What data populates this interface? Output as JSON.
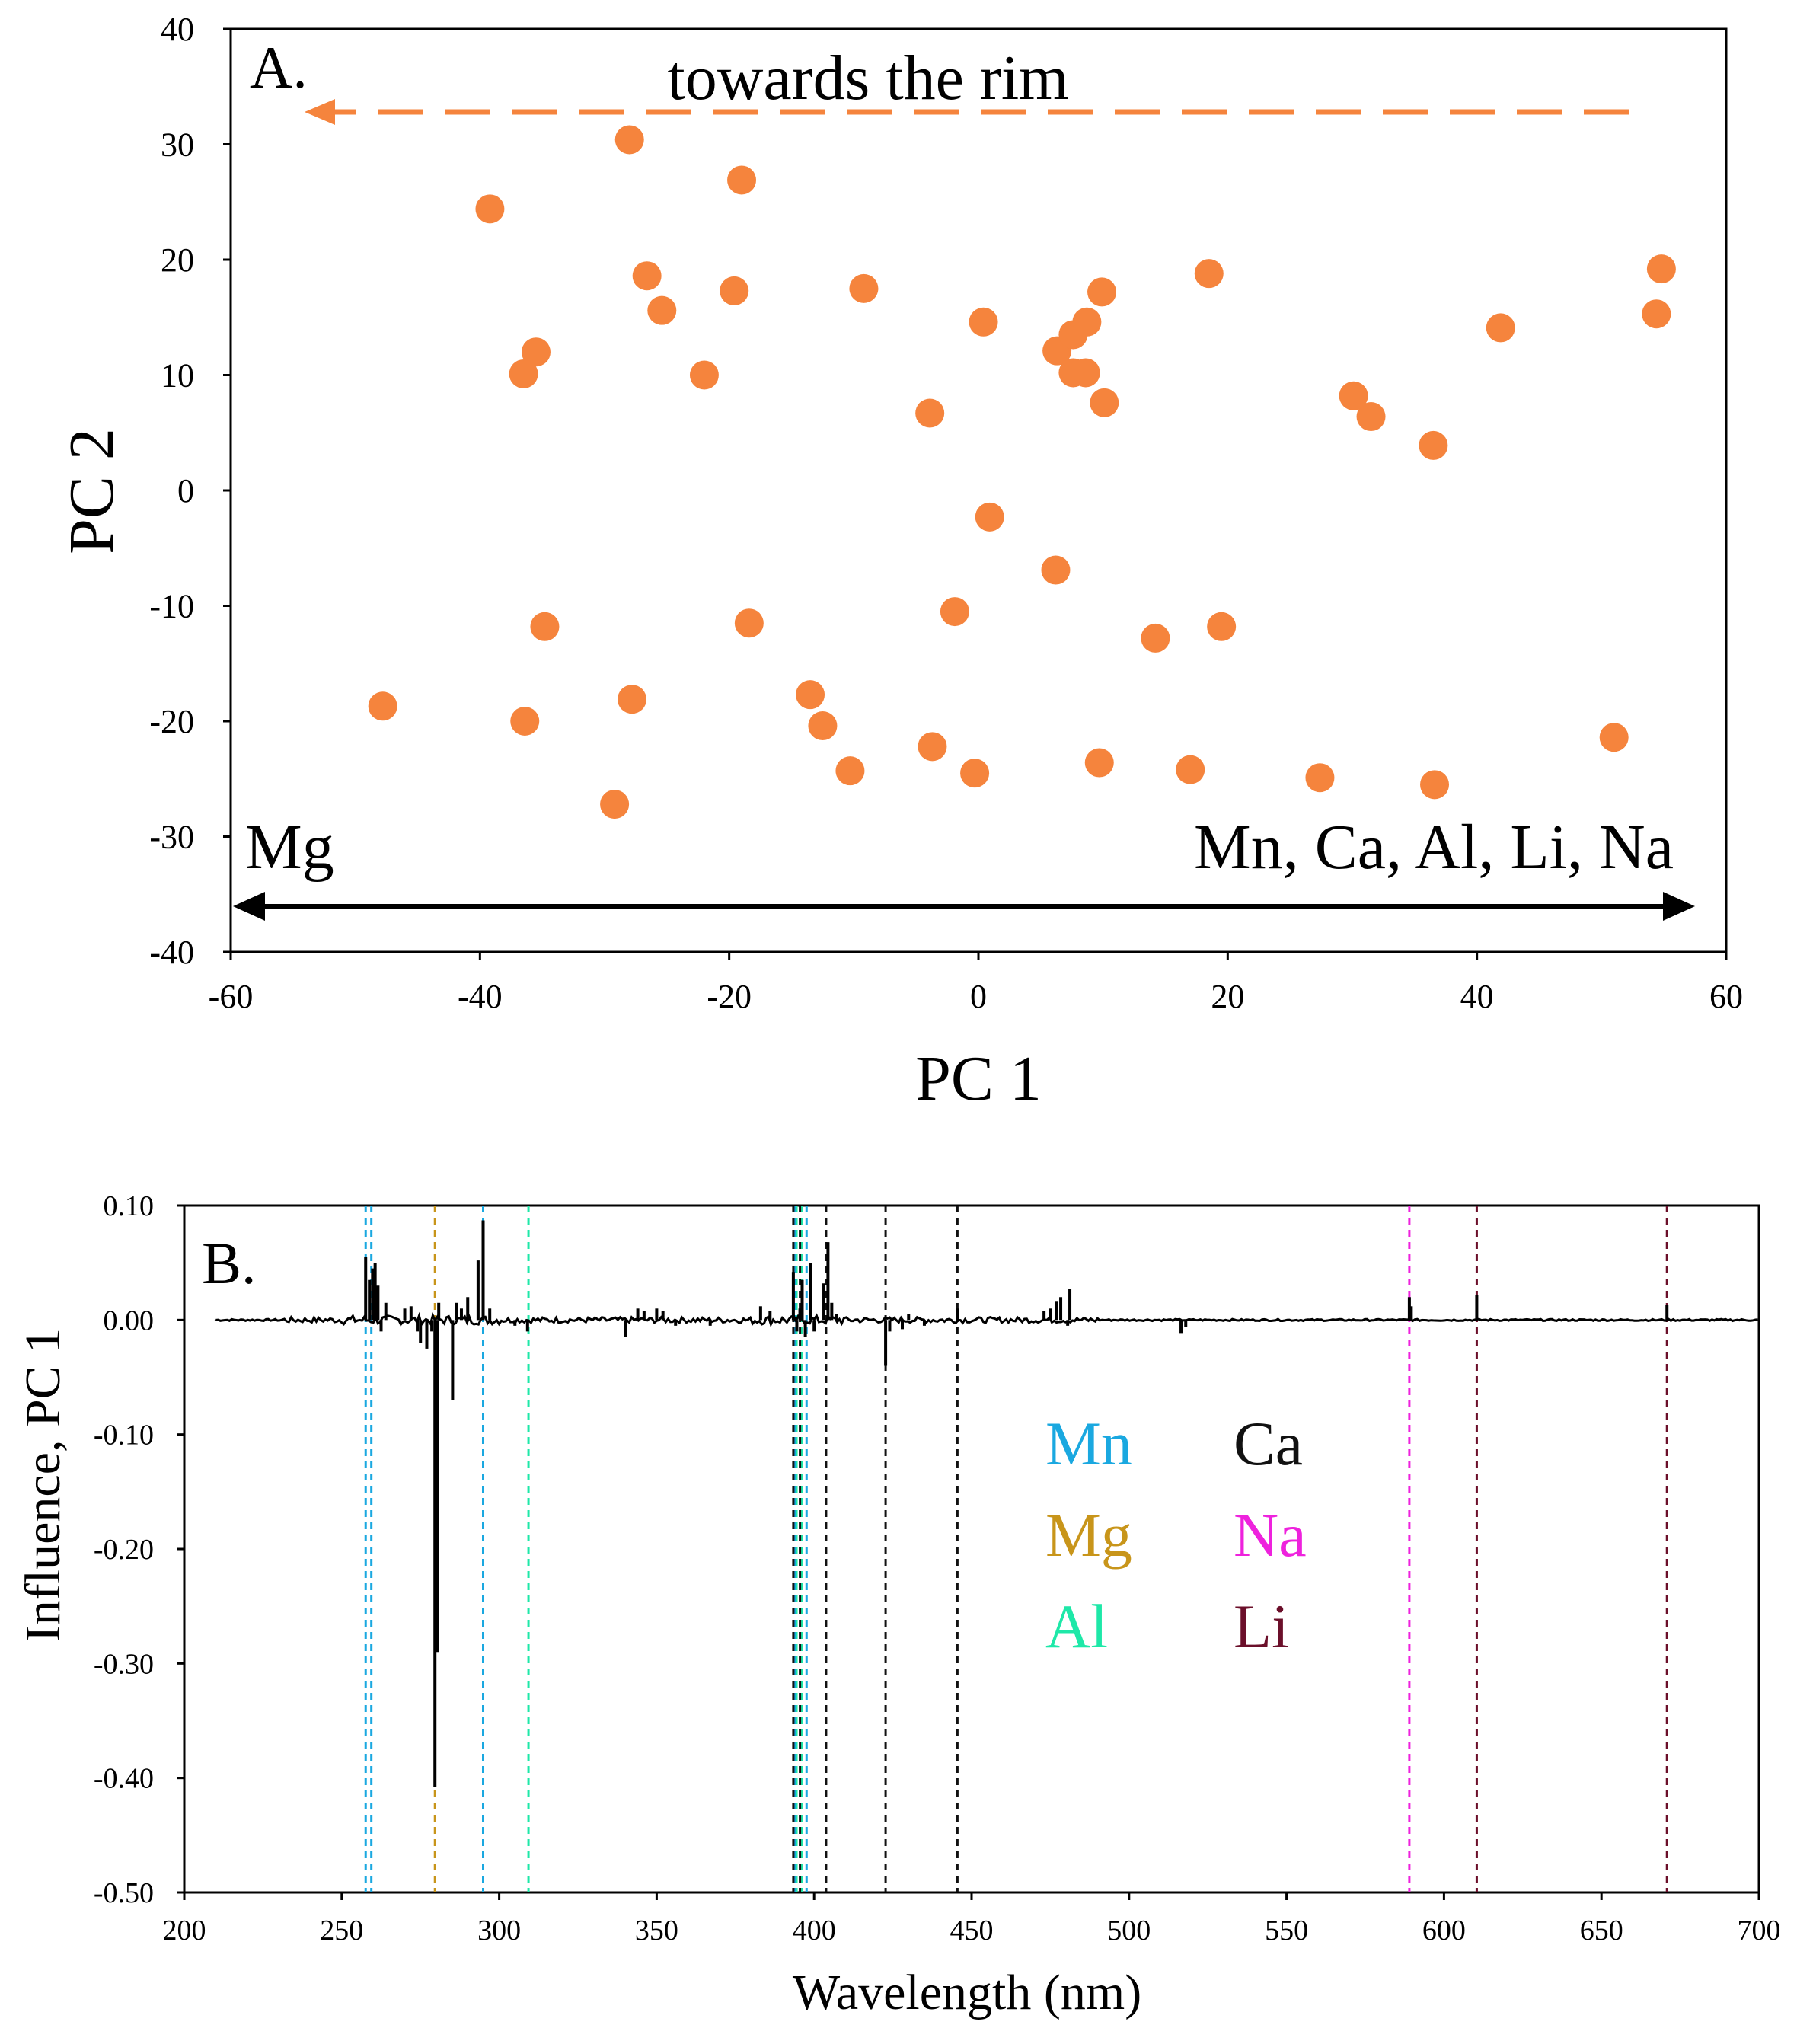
{
  "chart_data": [
    {
      "panel_label": "A.",
      "type": "scatter",
      "xlabel": "PC 1",
      "ylabel": "PC 2",
      "xlim": [
        -60,
        60
      ],
      "ylim": [
        -40,
        40
      ],
      "xticks": [
        -60,
        -40,
        -20,
        0,
        20,
        40,
        60
      ],
      "yticks": [
        -40,
        -30,
        -20,
        -10,
        0,
        10,
        20,
        30,
        40
      ],
      "marker_color": "#f5843d",
      "arrow_color": "#f5843d",
      "annotations": {
        "rim": "towards the rim",
        "left": "Mg",
        "right": "Mn, Ca, Al, Li, Na"
      },
      "points": [
        [
          -28,
          30.4
        ],
        [
          -39.2,
          24.4
        ],
        [
          -19,
          26.9
        ],
        [
          -26.6,
          18.6
        ],
        [
          -19.6,
          17.3
        ],
        [
          -9.2,
          17.5
        ],
        [
          -25.4,
          15.6
        ],
        [
          0.4,
          14.6
        ],
        [
          9.9,
          17.2
        ],
        [
          18.5,
          18.8
        ],
        [
          54.8,
          19.2
        ],
        [
          54.4,
          15.3
        ],
        [
          41.9,
          14.1
        ],
        [
          -35.5,
          12
        ],
        [
          -36.5,
          10.1
        ],
        [
          -22,
          10
        ],
        [
          6.3,
          12.1
        ],
        [
          7.6,
          13.5
        ],
        [
          8.7,
          14.6
        ],
        [
          7.6,
          10.2
        ],
        [
          8.6,
          10.2
        ],
        [
          10.1,
          7.6
        ],
        [
          -3.9,
          6.7
        ],
        [
          30.1,
          8.2
        ],
        [
          31.5,
          6.4
        ],
        [
          36.5,
          3.9
        ],
        [
          0.9,
          -2.3
        ],
        [
          6.2,
          -6.9
        ],
        [
          -1.9,
          -10.5
        ],
        [
          -34.8,
          -11.8
        ],
        [
          -18.4,
          -11.5
        ],
        [
          14.2,
          -12.8
        ],
        [
          19.5,
          -11.8
        ],
        [
          -47.8,
          -18.7
        ],
        [
          -36.4,
          -20
        ],
        [
          -27.8,
          -18.1
        ],
        [
          -13.5,
          -17.7
        ],
        [
          -12.5,
          -20.4
        ],
        [
          -10.3,
          -24.3
        ],
        [
          -3.7,
          -22.2
        ],
        [
          -0.3,
          -24.5
        ],
        [
          9.7,
          -23.6
        ],
        [
          17,
          -24.2
        ],
        [
          27.4,
          -24.9
        ],
        [
          36.6,
          -25.5
        ],
        [
          51,
          -21.4
        ],
        [
          -29.2,
          -27.2
        ]
      ]
    },
    {
      "panel_label": "B.",
      "type": "line",
      "xlabel": "Wavelength (nm)",
      "ylabel": "Influence, PC 1",
      "xlim": [
        200,
        700
      ],
      "ylim": [
        -0.5,
        0.1
      ],
      "xticks": [
        "200",
        "250",
        "300",
        "350",
        "400",
        "450",
        "500",
        "550",
        "600",
        "650",
        "700"
      ],
      "yticks": [
        "0.10",
        "0.00",
        "-0.10",
        "-0.20",
        "-0.30",
        "-0.40",
        "-0.50"
      ],
      "line_color": "#000000",
      "spectrum_range": [
        210,
        700
      ],
      "peaks": [
        [
          257.6,
          0.055
        ],
        [
          258.8,
          0.035
        ],
        [
          259.8,
          0.045
        ],
        [
          260.6,
          0.05
        ],
        [
          261.5,
          0.03
        ],
        [
          262.5,
          -0.01
        ],
        [
          264,
          0.015
        ],
        [
          270,
          0.01
        ],
        [
          272,
          0.012
        ],
        [
          274,
          -0.01
        ],
        [
          275,
          -0.02
        ],
        [
          277,
          -0.025
        ],
        [
          278.6,
          -0.01
        ],
        [
          279.6,
          -0.408
        ],
        [
          280.3,
          -0.29
        ],
        [
          280.8,
          0.015
        ],
        [
          285.2,
          -0.07
        ],
        [
          286.5,
          0.015
        ],
        [
          288,
          0.01
        ],
        [
          290,
          0.02
        ],
        [
          293.3,
          0.052
        ],
        [
          294.9,
          0.087
        ],
        [
          297,
          0.01
        ],
        [
          305,
          -0.005
        ],
        [
          309,
          -0.01
        ],
        [
          344,
          0.01
        ],
        [
          346,
          0.008
        ],
        [
          350,
          0.01
        ],
        [
          352,
          0.008
        ],
        [
          340,
          -0.015
        ],
        [
          356,
          -0.005
        ],
        [
          367,
          -0.005
        ],
        [
          383,
          0.012
        ],
        [
          386,
          0.008
        ],
        [
          393.4,
          0.042
        ],
        [
          394.5,
          -0.01
        ],
        [
          395.5,
          0.01
        ],
        [
          396.2,
          0.035
        ],
        [
          397.2,
          -0.015
        ],
        [
          398.8,
          0.05
        ],
        [
          400,
          -0.01
        ],
        [
          403.1,
          0.032
        ],
        [
          404.4,
          0.068
        ],
        [
          405.6,
          0.015
        ],
        [
          407,
          0.005
        ],
        [
          422.7,
          -0.04
        ],
        [
          424,
          -0.01
        ],
        [
          428,
          -0.008
        ],
        [
          430,
          0.005
        ],
        [
          435,
          -0.005
        ],
        [
          445.5,
          0.01
        ],
        [
          473,
          0.008
        ],
        [
          475,
          0.01
        ],
        [
          477,
          0.016
        ],
        [
          478.3,
          0.02
        ],
        [
          481.2,
          0.027
        ],
        [
          480.5,
          -0.005
        ],
        [
          516.5,
          -0.012
        ],
        [
          518,
          -0.006
        ],
        [
          589,
          0.02
        ],
        [
          589.6,
          0.012
        ],
        [
          610.4,
          0.022
        ],
        [
          670.8,
          0.013
        ]
      ],
      "reference_lines": [
        {
          "element": "Mn",
          "x": 257.6
        },
        {
          "element": "Mn",
          "x": 259.4
        },
        {
          "element": "Mn",
          "x": 294.9
        },
        {
          "element": "Mg",
          "x": 279.6
        },
        {
          "element": "Al",
          "x": 309.3
        },
        {
          "element": "Al",
          "x": 394.4
        },
        {
          "element": "Al",
          "x": 396.2
        },
        {
          "element": "Mn",
          "x": 393.8
        },
        {
          "element": "Mn",
          "x": 397.6
        },
        {
          "element": "Ca",
          "x": 393.4
        },
        {
          "element": "Ca",
          "x": 395.5
        },
        {
          "element": "Ca",
          "x": 403.8
        },
        {
          "element": "Ca",
          "x": 422.7
        },
        {
          "element": "Ca",
          "x": 445.5
        },
        {
          "element": "Na",
          "x": 589.0
        },
        {
          "element": "Li",
          "x": 610.4
        },
        {
          "element": "Li",
          "x": 670.8
        }
      ],
      "legend": {
        "column1": [
          {
            "element": "Mn",
            "color": "#1aa8e0"
          },
          {
            "element": "Mg",
            "color": "#c8951a"
          },
          {
            "element": "Al",
            "color": "#1ee8a8"
          }
        ],
        "column2": [
          {
            "element": "Ca",
            "color": "#111111"
          },
          {
            "element": "Na",
            "color": "#ee22dd"
          },
          {
            "element": "Li",
            "color": "#6b0f2a"
          }
        ]
      }
    }
  ]
}
